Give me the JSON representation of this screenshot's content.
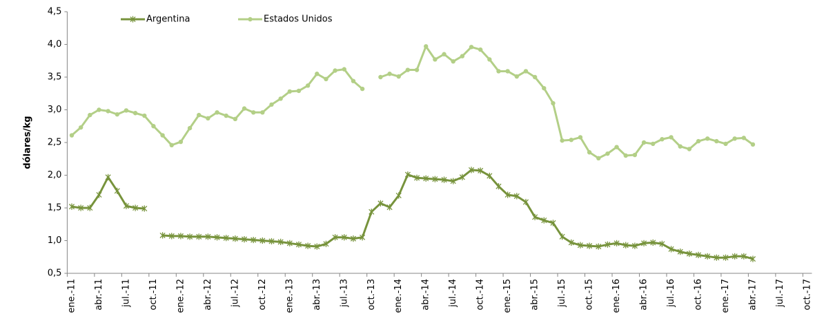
{
  "chart_data": {
    "type": "line",
    "y_label": "dólares/kg",
    "categories": [
      "ene.-11",
      null,
      null,
      "abr.-11",
      null,
      null,
      "jul.-11",
      null,
      null,
      "oct.-11",
      null,
      null,
      "ene.-12",
      null,
      null,
      "abr.-12",
      null,
      null,
      "jul.-12",
      null,
      null,
      "oct.-12",
      null,
      null,
      "ene.-13",
      null,
      null,
      "abr.-13",
      null,
      null,
      "jul.-13",
      null,
      null,
      "oct.-13",
      null,
      null,
      "ene.-14",
      null,
      null,
      "abr.-14",
      null,
      null,
      "jul.-14",
      null,
      null,
      "oct.-14",
      null,
      null,
      "ene.-15",
      null,
      null,
      "abr.-15",
      null,
      null,
      "jul.-15",
      null,
      null,
      "oct.-15",
      null,
      null,
      "ene.-16",
      null,
      null,
      "abr.-16",
      null,
      null,
      "jul.-16",
      null,
      null,
      "oct.-16",
      null,
      null,
      "ene.-17",
      null,
      null,
      "abr.-17",
      null,
      null,
      "jul.-17",
      null,
      null,
      "oct.-17"
    ],
    "series": [
      {
        "name": "Argentina",
        "color": "#77933c",
        "marker": "star",
        "values": [
          1.52,
          1.5,
          1.5,
          1.7,
          1.97,
          1.76,
          1.53,
          1.5,
          1.49,
          null,
          1.08,
          1.07,
          1.07,
          1.06,
          1.06,
          1.06,
          1.05,
          1.04,
          1.03,
          1.02,
          1.01,
          1.0,
          0.99,
          0.98,
          0.96,
          0.94,
          0.92,
          0.91,
          0.95,
          1.05,
          1.05,
          1.03,
          1.05,
          1.44,
          1.57,
          1.51,
          1.69,
          2.01,
          1.96,
          1.95,
          1.94,
          1.93,
          1.91,
          1.97,
          2.08,
          2.07,
          1.99,
          1.83,
          1.7,
          1.68,
          1.59,
          1.36,
          1.31,
          1.27,
          1.06,
          0.97,
          0.93,
          0.92,
          0.91,
          0.94,
          0.96,
          0.93,
          0.92,
          0.96,
          0.97,
          0.95,
          0.87,
          0.83,
          0.8,
          0.78,
          0.76,
          0.74,
          0.74,
          0.76,
          0.76,
          0.72,
          null,
          null,
          null,
          null,
          null,
          null
        ]
      },
      {
        "name": "Estados Unidos",
        "color": "#b3cf87",
        "marker": "circle",
        "values": [
          2.61,
          2.73,
          2.92,
          3.0,
          2.98,
          2.93,
          2.99,
          2.95,
          2.91,
          2.75,
          2.61,
          2.46,
          2.51,
          2.72,
          2.92,
          2.87,
          2.96,
          2.91,
          2.86,
          3.02,
          2.96,
          2.96,
          3.08,
          3.17,
          3.28,
          3.29,
          3.37,
          3.55,
          3.47,
          3.6,
          3.62,
          3.44,
          3.32,
          null,
          3.5,
          3.55,
          3.51,
          3.61,
          3.61,
          3.97,
          3.77,
          3.85,
          3.74,
          3.82,
          3.96,
          3.92,
          3.77,
          3.59,
          3.59,
          3.51,
          3.59,
          3.5,
          3.33,
          3.1,
          2.53,
          2.54,
          2.58,
          2.35,
          2.26,
          2.33,
          2.43,
          2.3,
          2.31,
          2.5,
          2.48,
          2.55,
          2.58,
          2.44,
          2.4,
          2.52,
          2.56,
          2.52,
          2.48,
          2.56,
          2.57,
          2.47,
          null,
          null,
          null,
          null,
          null,
          null
        ]
      }
    ],
    "ylim": [
      0.5,
      4.5
    ],
    "yticks": [
      {
        "value": 0.5,
        "label": "0,5"
      },
      {
        "value": 1,
        "label": "1,0"
      },
      {
        "value": 1.5,
        "label": "1,5"
      },
      {
        "value": 2,
        "label": "2,0"
      },
      {
        "value": 2.5,
        "label": "2,5"
      },
      {
        "value": 3,
        "label": "3,0"
      },
      {
        "value": 3.5,
        "label": "3,5"
      },
      {
        "value": 4,
        "label": "4,0"
      },
      {
        "value": 4.5,
        "label": "4,5"
      }
    ],
    "grid": false,
    "legend": "top-left"
  }
}
